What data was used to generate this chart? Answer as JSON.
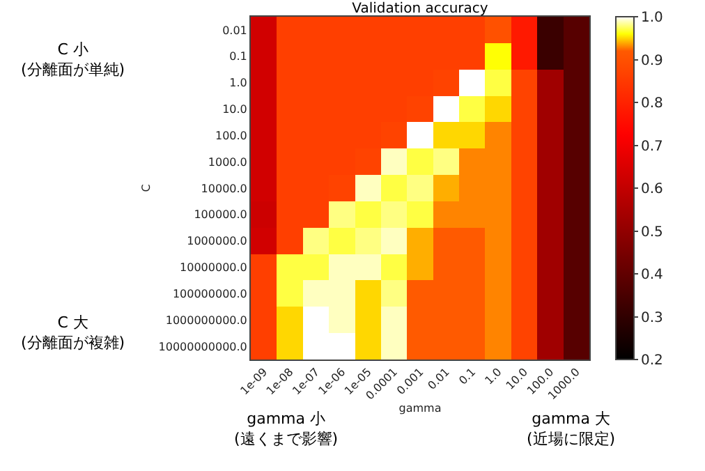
{
  "chart_data": {
    "type": "heatmap",
    "title": "Validation accuracy",
    "xlabel": "gamma",
    "ylabel": "C",
    "categories": [
      "1e-09",
      "1e-08",
      "1e-07",
      "1e-06",
      "1e-05",
      "0.0001",
      "0.001",
      "0.01",
      "0.1",
      "1.0",
      "10.0",
      "100.0",
      "1000.0"
    ],
    "y_categories": [
      "0.01",
      "0.1",
      "1.0",
      "10.0",
      "100.0",
      "1000.0",
      "10000.0",
      "100000.0",
      "1000000.0",
      "10000000.0",
      "100000000.0",
      "1000000000.0",
      "10000000000.0"
    ],
    "cells": [
      [
        0.63,
        0.86,
        0.86,
        0.86,
        0.86,
        0.86,
        0.86,
        0.86,
        0.86,
        0.9,
        0.78,
        0.32,
        0.38
      ],
      [
        0.63,
        0.86,
        0.86,
        0.86,
        0.86,
        0.86,
        0.86,
        0.86,
        0.86,
        0.96,
        0.78,
        0.32,
        0.38
      ],
      [
        0.63,
        0.86,
        0.86,
        0.86,
        0.86,
        0.86,
        0.86,
        0.87,
        1.0,
        0.97,
        0.87,
        0.53,
        0.38
      ],
      [
        0.63,
        0.86,
        0.86,
        0.86,
        0.86,
        0.86,
        0.87,
        1.0,
        0.97,
        0.95,
        0.87,
        0.53,
        0.38
      ],
      [
        0.63,
        0.86,
        0.86,
        0.86,
        0.86,
        0.87,
        1.0,
        0.95,
        0.95,
        0.93,
        0.87,
        0.53,
        0.38
      ],
      [
        0.63,
        0.86,
        0.86,
        0.86,
        0.87,
        0.99,
        0.97,
        0.98,
        0.93,
        0.93,
        0.87,
        0.53,
        0.38
      ],
      [
        0.63,
        0.86,
        0.86,
        0.87,
        0.99,
        0.97,
        0.98,
        0.94,
        0.93,
        0.93,
        0.87,
        0.53,
        0.38
      ],
      [
        0.62,
        0.86,
        0.86,
        0.98,
        0.97,
        0.98,
        0.97,
        0.93,
        0.93,
        0.93,
        0.87,
        0.53,
        0.38
      ],
      [
        0.63,
        0.86,
        0.98,
        0.97,
        0.98,
        0.99,
        0.94,
        0.92,
        0.92,
        0.93,
        0.87,
        0.53,
        0.38
      ],
      [
        0.86,
        0.97,
        0.97,
        0.99,
        0.99,
        0.97,
        0.94,
        0.92,
        0.92,
        0.93,
        0.87,
        0.53,
        0.38
      ],
      [
        0.86,
        0.97,
        0.99,
        0.99,
        0.95,
        0.98,
        0.92,
        0.92,
        0.92,
        0.93,
        0.87,
        0.53,
        0.38
      ],
      [
        0.86,
        0.95,
        1.0,
        0.99,
        0.95,
        0.99,
        0.92,
        0.92,
        0.92,
        0.93,
        0.87,
        0.53,
        0.38
      ],
      [
        0.86,
        0.95,
        1.0,
        1.0,
        0.95,
        0.99,
        0.92,
        0.92,
        0.92,
        0.93,
        0.87,
        0.53,
        0.38
      ]
    ],
    "clim": [
      0.2,
      1.0
    ],
    "cticks": [
      0.2,
      0.3,
      0.4,
      0.5,
      0.6,
      0.7,
      0.8,
      0.9,
      {
        "value": 1.0,
        "label": "1.0"
      }
    ],
    "annotations": [
      "C 小\n(分離面が単純)",
      "C 大\n(分離面が複雑)",
      "gamma 小\n(遠くまで影響)",
      "gamma 大\n(近場に限定)"
    ]
  }
}
